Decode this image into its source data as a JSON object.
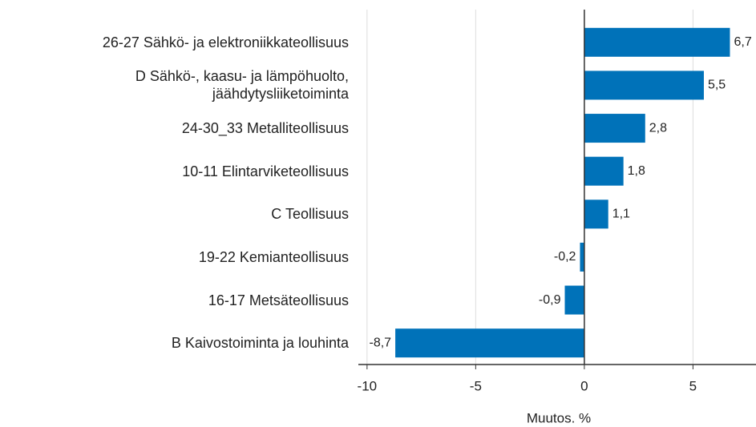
{
  "chart_data": {
    "type": "barh",
    "categories": [
      "26-27 Sähkö- ja elektroniikkateollisuus",
      "D Sähkö-, kaasu- ja lämpöhuolto,\njäähdytysliiketoiminta",
      "24-30_33 Metalliteollisuus",
      "10-11 Elintarviketeollisuus",
      "C Teollisuus",
      "19-22 Kemianteollisuus",
      "16-17 Metsäteollisuus",
      "B Kaivostoiminta ja louhinta"
    ],
    "values": [
      6.7,
      5.5,
      2.8,
      1.8,
      1.1,
      -0.2,
      -0.9,
      -8.7
    ],
    "value_labels": [
      "6,7",
      "5,5",
      "2,8",
      "1,8",
      "1,1",
      "-0,2",
      "-0,9",
      "-8,7"
    ],
    "color": "#0072b9",
    "xlabel": "Muutos. %",
    "xlim": [
      -10.4,
      7.9
    ],
    "xticks": [
      -10,
      -5,
      0,
      5
    ],
    "grid": true
  }
}
